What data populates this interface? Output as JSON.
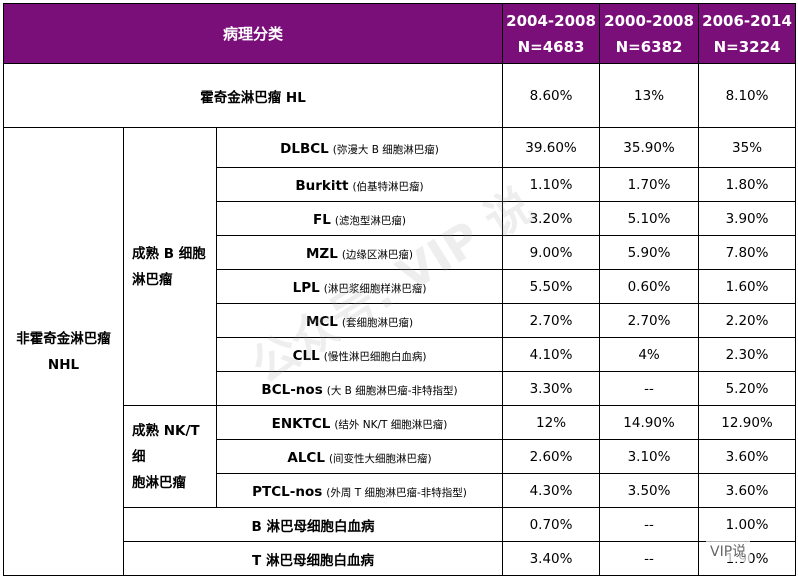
{
  "header": {
    "category": "病理分类",
    "cols": [
      {
        "years": "2004-2008",
        "n": "N=4683"
      },
      {
        "years": "2000-2008",
        "n": "N=6382"
      },
      {
        "years": "2006-2014",
        "n": "N=3224"
      }
    ]
  },
  "hl": {
    "label": "霍奇金淋巴瘤  HL",
    "values": [
      "8.60%",
      "13%",
      "8.10%"
    ]
  },
  "nhl": {
    "label_line1": "非霍奇金淋巴瘤",
    "label_line2": "NHL",
    "b_group": {
      "label_line1": "成熟 B 细胞",
      "label_line2": "淋巴瘤",
      "rows": [
        {
          "abbr": "DLBCL",
          "name": "(弥漫大 B 细胞淋巴瘤)",
          "values": [
            "39.60%",
            "35.90%",
            "35%"
          ]
        },
        {
          "abbr": "Burkitt",
          "name": "(伯基特淋巴瘤)",
          "values": [
            "1.10%",
            "1.70%",
            "1.80%"
          ]
        },
        {
          "abbr": "FL",
          "name": "(滤泡型淋巴瘤)",
          "values": [
            "3.20%",
            "5.10%",
            "3.90%"
          ]
        },
        {
          "abbr": "MZL",
          "name": "(边缘区淋巴瘤)",
          "values": [
            "9.00%",
            "5.90%",
            "7.80%"
          ]
        },
        {
          "abbr": "LPL",
          "name": "(淋巴浆细胞样淋巴瘤)",
          "values": [
            "5.50%",
            "0.60%",
            "1.60%"
          ]
        },
        {
          "abbr": "MCL",
          "name": "(套细胞淋巴瘤)",
          "values": [
            "2.70%",
            "2.70%",
            "2.20%"
          ]
        },
        {
          "abbr": "CLL",
          "name": "(慢性淋巴细胞白血病)",
          "values": [
            "4.10%",
            "4%",
            "2.30%"
          ]
        },
        {
          "abbr": "BCL-nos",
          "name": "(大 B 细胞淋巴瘤-非特指型)",
          "values": [
            "3.30%",
            "--",
            "5.20%"
          ]
        }
      ]
    },
    "t_group": {
      "label_line1": "成熟 NK/T 细",
      "label_line2": "胞淋巴瘤",
      "rows": [
        {
          "abbr": "ENKTCL",
          "name": "(结外 NK/T 细胞淋巴瘤)",
          "values": [
            "12%",
            "14.90%",
            "12.90%"
          ]
        },
        {
          "abbr": "ALCL",
          "name": "(间变性大细胞淋巴瘤)",
          "values": [
            "2.60%",
            "3.10%",
            "3.60%"
          ]
        },
        {
          "abbr": "PTCL-nos",
          "name": "(外周 T 细胞淋巴瘤-非特指型)",
          "values": [
            "4.30%",
            "3.50%",
            "3.60%"
          ]
        }
      ]
    },
    "other_rows": [
      {
        "label": "B 淋巴母细胞白血病",
        "values": [
          "0.70%",
          "--",
          "1.00%"
        ]
      },
      {
        "label": "T 淋巴母细胞白血病",
        "values": [
          "3.40%",
          "--",
          "1.90%"
        ]
      }
    ]
  },
  "watermark": {
    "center": "公众号: VIP 说",
    "corner": "VIP说"
  }
}
